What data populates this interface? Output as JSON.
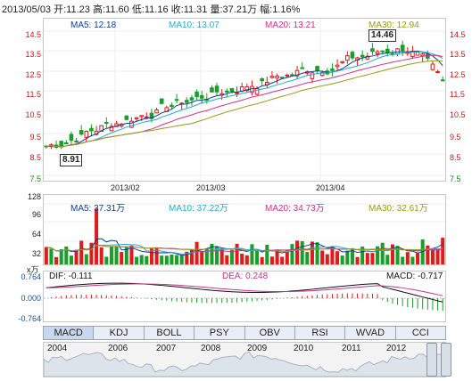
{
  "header": {
    "date": "2013/05/03",
    "open": "开:11.23",
    "high": "高:11.60",
    "low": "低:11.16",
    "close": "收:11.31",
    "volume": "量:37.21万",
    "change": "幅:1.16%"
  },
  "price_panel": {
    "legend": [
      {
        "label": "MA5: 12.18",
        "color": "#0b3f8f"
      },
      {
        "label": "MA10: 13.07",
        "color": "#2aa9c8"
      },
      {
        "label": "MA20: 13.21",
        "color": "#c8338a"
      },
      {
        "label": "MA30: 12.94",
        "color": "#9a9a1a"
      }
    ],
    "y_ticks": [
      "14.5",
      "13.5",
      "12.5",
      "11.5",
      "10.5",
      "9.5",
      "8.5",
      "7.5"
    ],
    "x_ticks": [
      "2013/02",
      "2013/03",
      "2013/04"
    ],
    "low_callout": "8.91",
    "high_callout": "14.46"
  },
  "volume_panel": {
    "legend": [
      {
        "label": "MA5: 37.31万",
        "color": "#0b3f8f"
      },
      {
        "label": "MA10: 37.22万",
        "color": "#2aa9c8"
      },
      {
        "label": "MA20: 34.73万",
        "color": "#c8338a"
      },
      {
        "label": "MA30: 32.61万",
        "color": "#9a9a1a"
      }
    ],
    "y_ticks": [
      "128",
      "96",
      "64",
      "32"
    ],
    "unit": "x万"
  },
  "macd_panel": {
    "dif": "DIF: -0.111",
    "dea": "DEA: 0.248",
    "macd": "MACD: -0.717",
    "y_ticks": [
      "0.764",
      "0.000",
      "-0.764"
    ]
  },
  "tabs": [
    "MACD",
    "KDJ",
    "BOLL",
    "PSY",
    "OBV",
    "RSI",
    "WVAD",
    "CCI"
  ],
  "active_tab": "MACD",
  "navigator_years": [
    "2004",
    "2006",
    "2007",
    "2008",
    "2009",
    "2010",
    "2011",
    "2012"
  ],
  "colors": {
    "up": "#e11a1a",
    "down": "#1a9e2a"
  }
}
